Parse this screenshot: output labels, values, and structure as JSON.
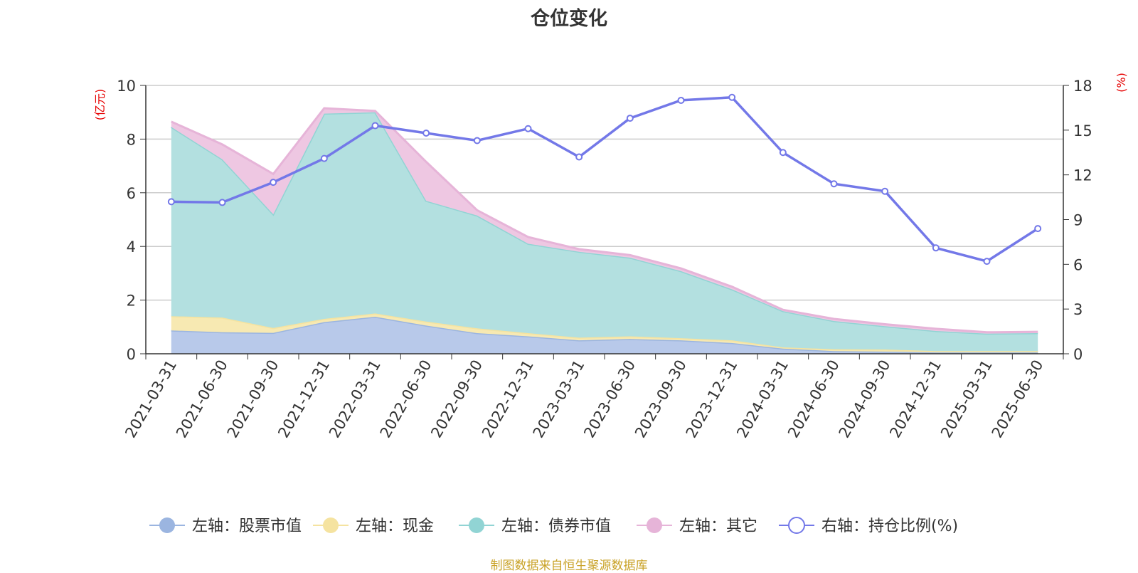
{
  "chart_data": {
    "type": "area",
    "title": "仓位变化",
    "y_left_label": "(亿元)",
    "y_right_label": "(%)",
    "categories": [
      "2021-03-31",
      "2021-06-30",
      "2021-09-30",
      "2021-12-31",
      "2022-03-31",
      "2022-06-30",
      "2022-09-30",
      "2022-12-31",
      "2023-03-31",
      "2023-06-30",
      "2023-09-30",
      "2023-12-31",
      "2024-03-31",
      "2024-06-30",
      "2024-09-30",
      "2024-12-31",
      "2025-03-31",
      "2025-06-30"
    ],
    "y_left_ticks": [
      "0",
      "2",
      "4",
      "6",
      "8",
      "10"
    ],
    "y_right_ticks": [
      "0",
      "3",
      "6",
      "9",
      "12",
      "15",
      "18"
    ],
    "ylim_left": [
      0,
      10
    ],
    "ylim_right": [
      0,
      18
    ],
    "grid": true,
    "legend_position": "bottom",
    "stacked_series": [
      {
        "name": "左轴：股票市值",
        "axis": "left",
        "color": "#9bb5e0",
        "fill": "#b8c9ea",
        "values": [
          0.87,
          0.8,
          0.78,
          1.18,
          1.38,
          1.05,
          0.77,
          0.65,
          0.5,
          0.55,
          0.5,
          0.4,
          0.19,
          0.1,
          0.08,
          0.05,
          0.05,
          0.05
        ]
      },
      {
        "name": "左轴：现金",
        "axis": "left",
        "color": "#f5e3a0",
        "fill": "#f7e9b2",
        "values": [
          0.53,
          0.55,
          0.18,
          0.12,
          0.12,
          0.15,
          0.18,
          0.12,
          0.1,
          0.1,
          0.08,
          0.1,
          0.05,
          0.07,
          0.08,
          0.05,
          0.05,
          0.05
        ]
      },
      {
        "name": "左轴：债券市值",
        "axis": "left",
        "color": "#91d4d4",
        "fill": "#b3e0e0",
        "values": [
          7.05,
          5.9,
          4.24,
          7.65,
          7.5,
          4.5,
          4.2,
          3.33,
          3.2,
          2.93,
          2.5,
          1.9,
          1.35,
          1.05,
          0.87,
          0.75,
          0.65,
          0.67
        ]
      },
      {
        "name": "左轴：其它",
        "axis": "left",
        "color": "#e6b4d8",
        "fill": "#eec7e2",
        "values": [
          0.2,
          0.55,
          1.5,
          0.2,
          0.05,
          1.45,
          0.2,
          0.25,
          0.1,
          0.1,
          0.1,
          0.1,
          0.05,
          0.08,
          0.07,
          0.08,
          0.05,
          0.05
        ]
      }
    ],
    "line_series": {
      "name": "右轴：持仓比例(%)",
      "axis": "right",
      "color": "#7378e8",
      "values": [
        10.2,
        10.15,
        11.5,
        13.1,
        15.3,
        14.8,
        14.3,
        15.1,
        13.2,
        15.8,
        17.0,
        17.2,
        13.5,
        11.4,
        10.9,
        7.1,
        6.2,
        8.4
      ]
    }
  },
  "source": "制图数据来自恒生聚源数据库"
}
